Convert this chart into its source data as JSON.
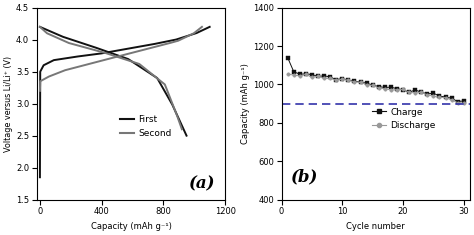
{
  "panel_a": {
    "title": "(a)",
    "xlabel": "Capacity (mAh g⁻¹)",
    "ylabel": "Voltage versus Li/Li⁺ (V)",
    "xlim": [
      -20,
      1200
    ],
    "ylim": [
      1.5,
      4.5
    ],
    "xticks": [
      0,
      400,
      800,
      1200
    ],
    "yticks": [
      1.5,
      2.0,
      2.5,
      3.0,
      3.5,
      4.0,
      4.5
    ],
    "legend_labels": [
      "First",
      "Second"
    ],
    "first_color": "#111111",
    "second_color": "#777777"
  },
  "panel_b": {
    "title": "(b)",
    "xlabel": "Cycle number",
    "ylabel": "Capacity (mAh g⁻¹)",
    "xlim": [
      0,
      31
    ],
    "ylim": [
      400,
      1400
    ],
    "xticks": [
      0,
      10,
      20,
      30
    ],
    "yticks": [
      400,
      600,
      800,
      1000,
      1200,
      1400
    ],
    "dashed_line_y": 900,
    "dashed_color": "#3333aa",
    "charge_color": "#111111",
    "discharge_color": "#999999",
    "legend_labels": [
      "Charge",
      "Discharge"
    ]
  }
}
